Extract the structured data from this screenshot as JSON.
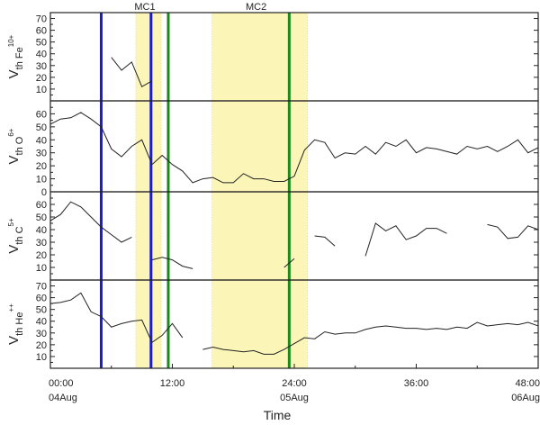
{
  "chart_data": {
    "type": "line",
    "xlabel": "Time",
    "x_range_hours": [
      0,
      48
    ],
    "x_ticks": [
      {
        "hour": 0,
        "label": "00:00",
        "date": "04Aug"
      },
      {
        "hour": 12,
        "label": "12:00",
        "date": ""
      },
      {
        "hour": 24,
        "label": "24:00",
        "date": "05Aug"
      },
      {
        "hour": 36,
        "label": "36:00",
        "date": ""
      },
      {
        "hour": 48,
        "label": "48:00",
        "date": "06Aug"
      }
    ],
    "regions": [
      {
        "label": "MC1",
        "start_hour": 8.4,
        "end_hour": 10.9
      },
      {
        "label": "MC2",
        "start_hour": 15.9,
        "end_hour": 25.3
      }
    ],
    "vertical_lines": [
      {
        "hour": 5.0,
        "color": "#1a1adc"
      },
      {
        "hour": 9.9,
        "color": "#1a1adc"
      },
      {
        "hour": 11.6,
        "color": "#1a8a1a"
      },
      {
        "hour": 23.5,
        "color": "#1a8a1a"
      }
    ],
    "panels": [
      {
        "ylabel_main": "V",
        "ylabel_sub": "th Fe",
        "ylabel_sup": "10+",
        "ylim": [
          0,
          75
        ],
        "yticks": [
          10,
          20,
          30,
          40,
          50,
          60,
          70
        ],
        "segments": [
          [
            [
              6.0,
              37
            ],
            [
              7.0,
              26
            ],
            [
              8.0,
              33
            ],
            [
              9.0,
              12
            ],
            [
              10.0,
              17
            ]
          ]
        ]
      },
      {
        "ylabel_main": "V",
        "ylabel_sub": "th O",
        "ylabel_sup": "6+",
        "ylim": [
          0,
          70
        ],
        "yticks": [
          0,
          10,
          20,
          30,
          40,
          50,
          60
        ],
        "segments": [
          [
            [
              0,
              52
            ],
            [
              1,
              56
            ],
            [
              2,
              57
            ],
            [
              3,
              61
            ],
            [
              4,
              56
            ],
            [
              5,
              50
            ],
            [
              6,
              33
            ],
            [
              7,
              27
            ],
            [
              8,
              35
            ],
            [
              9,
              40
            ],
            [
              10,
              21
            ],
            [
              11,
              28
            ],
            [
              12,
              21
            ],
            [
              13,
              16
            ],
            [
              14,
              7
            ],
            [
              15,
              10
            ],
            [
              16,
              11
            ],
            [
              17,
              7
            ],
            [
              18,
              7
            ],
            [
              19,
              14
            ],
            [
              20,
              10
            ],
            [
              21,
              10
            ],
            [
              22,
              8
            ],
            [
              23,
              8
            ],
            [
              24,
              12
            ],
            [
              25,
              32
            ],
            [
              26,
              40
            ],
            [
              27,
              38
            ],
            [
              28,
              26
            ],
            [
              29,
              30
            ],
            [
              30,
              29
            ],
            [
              31,
              35
            ],
            [
              32,
              29
            ],
            [
              33,
              38
            ],
            [
              34,
              35
            ],
            [
              35,
              40
            ],
            [
              36,
              30
            ],
            [
              37,
              34
            ],
            [
              38,
              33
            ],
            [
              39,
              31
            ],
            [
              40,
              29
            ],
            [
              41,
              35
            ],
            [
              42,
              33
            ],
            [
              43,
              35
            ],
            [
              44,
              31
            ],
            [
              45,
              35
            ],
            [
              46,
              40
            ],
            [
              47,
              30
            ],
            [
              48,
              34
            ]
          ]
        ]
      },
      {
        "ylabel_main": "V",
        "ylabel_sub": "th C",
        "ylabel_sup": "5+",
        "ylim": [
          0,
          70
        ],
        "yticks": [
          10,
          20,
          30,
          40,
          50,
          60
        ],
        "segments": [
          [
            [
              0,
              47
            ],
            [
              1,
              52
            ],
            [
              2,
              62
            ],
            [
              3,
              58
            ],
            [
              4,
              50
            ],
            [
              5,
              42
            ],
            [
              6,
              36
            ],
            [
              7,
              30
            ],
            [
              8,
              34
            ]
          ],
          [
            [
              10.0,
              16
            ],
            [
              11.0,
              18
            ],
            [
              12.0,
              16
            ],
            [
              13.0,
              11
            ],
            [
              14.0,
              9
            ]
          ],
          [
            [
              23.0,
              10
            ],
            [
              24.0,
              17
            ]
          ],
          [
            [
              26.0,
              35
            ],
            [
              27.0,
              34
            ],
            [
              28.0,
              27
            ]
          ],
          [
            [
              31.0,
              19
            ],
            [
              32.0,
              45
            ],
            [
              33.0,
              39
            ],
            [
              34.0,
              43
            ],
            [
              35.0,
              32
            ],
            [
              36.0,
              35
            ],
            [
              37.0,
              41
            ],
            [
              38.0,
              41
            ],
            [
              39.0,
              37
            ]
          ],
          [
            [
              43.0,
              44
            ],
            [
              44.0,
              42
            ],
            [
              45.0,
              33
            ],
            [
              46.0,
              34
            ],
            [
              47.0,
              43
            ],
            [
              48.0,
              40
            ]
          ]
        ]
      },
      {
        "ylabel_main": "V",
        "ylabel_sub": "th He",
        "ylabel_sup": "++",
        "ylim": [
          0,
          75
        ],
        "yticks": [
          10,
          20,
          30,
          40,
          50,
          60,
          70
        ],
        "segments": [
          [
            [
              0,
              55
            ],
            [
              1,
              56
            ],
            [
              2,
              58
            ],
            [
              3,
              64
            ],
            [
              4,
              48
            ],
            [
              5,
              44
            ],
            [
              6,
              35
            ],
            [
              7,
              38
            ],
            [
              8,
              40
            ],
            [
              9,
              41
            ],
            [
              10,
              22
            ],
            [
              11,
              28
            ],
            [
              12,
              38
            ],
            [
              13,
              26
            ]
          ],
          [
            [
              15.0,
              16
            ],
            [
              16.0,
              18
            ],
            [
              17.0,
              16
            ],
            [
              18.0,
              15
            ],
            [
              19.0,
              14
            ],
            [
              20.0,
              15
            ],
            [
              21.0,
              12
            ],
            [
              22.0,
              12
            ],
            [
              23.0,
              16
            ],
            [
              24.0,
              21
            ],
            [
              25.0,
              26
            ],
            [
              26.0,
              25
            ],
            [
              27.0,
              31
            ],
            [
              28.0,
              29
            ],
            [
              29.0,
              30
            ],
            [
              30.0,
              30
            ],
            [
              31.0,
              33
            ],
            [
              32.0,
              35
            ],
            [
              33.0,
              36
            ],
            [
              34.0,
              35
            ],
            [
              35.0,
              34
            ],
            [
              36.0,
              34
            ],
            [
              37.0,
              33
            ],
            [
              38.0,
              34
            ],
            [
              39.0,
              33
            ],
            [
              40.0,
              35
            ],
            [
              41.0,
              34
            ],
            [
              42.0,
              39
            ],
            [
              43.0,
              36
            ],
            [
              44.0,
              37
            ],
            [
              45.0,
              38
            ],
            [
              46.0,
              37
            ],
            [
              47.0,
              39
            ],
            [
              48.0,
              36
            ]
          ]
        ]
      }
    ]
  }
}
